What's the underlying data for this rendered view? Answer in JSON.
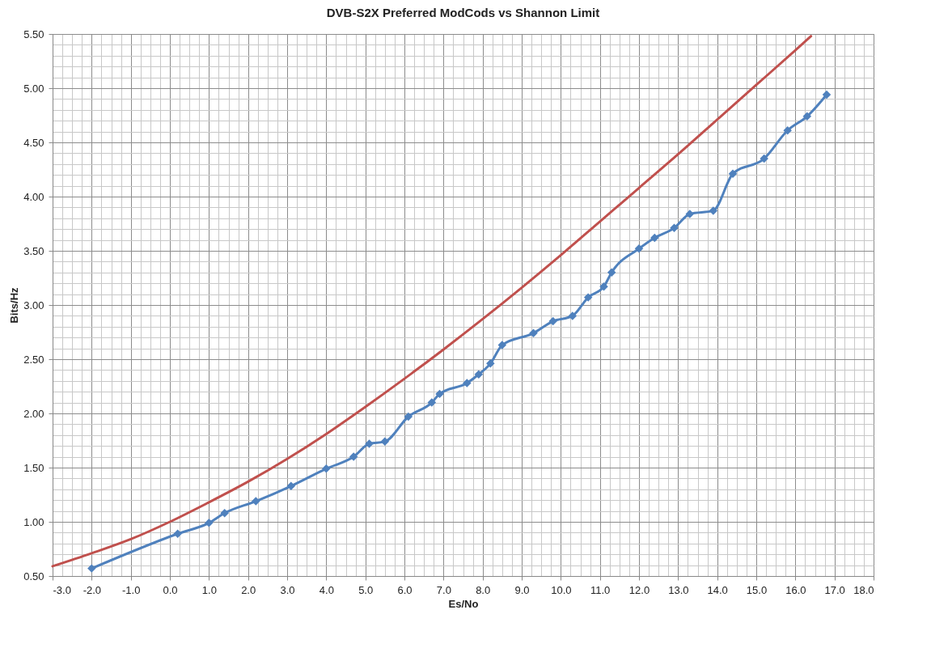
{
  "chart_data": {
    "type": "line",
    "title": "DVB-S2X Preferred ModCods vs Shannon Limit",
    "xlabel": "Es/No",
    "ylabel": "Bits/Hz",
    "xlim": [
      -3,
      18
    ],
    "ylim": [
      0.5,
      5.5
    ],
    "grid": true,
    "xticks": [
      {
        "value": -3,
        "label": "-3.0"
      },
      {
        "value": -2.75,
        "label": null
      },
      {
        "value": -2.5,
        "label": null
      },
      {
        "value": -2.25,
        "label": null
      },
      {
        "value": -2,
        "label": "-2.0"
      },
      {
        "value": -1.75,
        "label": null
      },
      {
        "value": -1.5,
        "label": null
      },
      {
        "value": -1.25,
        "label": null
      },
      {
        "value": -1,
        "label": "-1.0"
      },
      {
        "value": -0.75,
        "label": null
      },
      {
        "value": -0.5,
        "label": null
      },
      {
        "value": -0.25,
        "label": null
      },
      {
        "value": 0,
        "label": "0.0"
      },
      {
        "value": 0.25,
        "label": null
      },
      {
        "value": 0.5,
        "label": null
      },
      {
        "value": 0.75,
        "label": null
      },
      {
        "value": 1,
        "label": "1.0"
      },
      {
        "value": 1.25,
        "label": null
      },
      {
        "value": 1.5,
        "label": null
      },
      {
        "value": 1.75,
        "label": null
      },
      {
        "value": 2,
        "label": "2.0"
      },
      {
        "value": 2.25,
        "label": null
      },
      {
        "value": 2.5,
        "label": null
      },
      {
        "value": 2.75,
        "label": null
      },
      {
        "value": 3,
        "label": "3.0"
      },
      {
        "value": 3.25,
        "label": null
      },
      {
        "value": 3.5,
        "label": null
      },
      {
        "value": 3.75,
        "label": null
      },
      {
        "value": 4,
        "label": "4.0"
      },
      {
        "value": 4.25,
        "label": null
      },
      {
        "value": 4.5,
        "label": null
      },
      {
        "value": 4.75,
        "label": null
      },
      {
        "value": 5,
        "label": "5.0"
      },
      {
        "value": 5.25,
        "label": null
      },
      {
        "value": 5.5,
        "label": null
      },
      {
        "value": 5.75,
        "label": null
      },
      {
        "value": 6,
        "label": "6.0"
      },
      {
        "value": 6.25,
        "label": null
      },
      {
        "value": 6.5,
        "label": null
      },
      {
        "value": 6.75,
        "label": null
      },
      {
        "value": 7,
        "label": "7.0"
      },
      {
        "value": 7.25,
        "label": null
      },
      {
        "value": 7.5,
        "label": null
      },
      {
        "value": 7.75,
        "label": null
      },
      {
        "value": 8,
        "label": "8.0"
      },
      {
        "value": 8.25,
        "label": null
      },
      {
        "value": 8.5,
        "label": null
      },
      {
        "value": 8.75,
        "label": null
      },
      {
        "value": 9,
        "label": "9.0"
      },
      {
        "value": 9.25,
        "label": null
      },
      {
        "value": 9.5,
        "label": null
      },
      {
        "value": 9.75,
        "label": null
      },
      {
        "value": 10,
        "label": "10.0"
      },
      {
        "value": 10.25,
        "label": null
      },
      {
        "value": 10.5,
        "label": null
      },
      {
        "value": 10.75,
        "label": null
      },
      {
        "value": 11,
        "label": "11.0"
      },
      {
        "value": 11.25,
        "label": null
      },
      {
        "value": 11.5,
        "label": null
      },
      {
        "value": 11.75,
        "label": null
      },
      {
        "value": 12,
        "label": "12.0"
      },
      {
        "value": 12.25,
        "label": null
      },
      {
        "value": 12.5,
        "label": null
      },
      {
        "value": 12.75,
        "label": null
      },
      {
        "value": 13,
        "label": "13.0"
      },
      {
        "value": 13.25,
        "label": null
      },
      {
        "value": 13.5,
        "label": null
      },
      {
        "value": 13.75,
        "label": null
      },
      {
        "value": 14,
        "label": "14.0"
      },
      {
        "value": 14.25,
        "label": null
      },
      {
        "value": 14.5,
        "label": null
      },
      {
        "value": 14.75,
        "label": null
      },
      {
        "value": 15,
        "label": "15.0"
      },
      {
        "value": 15.25,
        "label": null
      },
      {
        "value": 15.5,
        "label": null
      },
      {
        "value": 15.75,
        "label": null
      },
      {
        "value": 16,
        "label": "16.0"
      },
      {
        "value": 16.25,
        "label": null
      },
      {
        "value": 16.5,
        "label": null
      },
      {
        "value": 16.75,
        "label": null
      },
      {
        "value": 17,
        "label": "17.0"
      },
      {
        "value": 17.25,
        "label": null
      },
      {
        "value": 17.5,
        "label": null
      },
      {
        "value": 17.75,
        "label": null
      },
      {
        "value": 18,
        "label": "18.0"
      }
    ],
    "yticks": [
      {
        "value": 0.5,
        "label": "0.50"
      },
      {
        "value": 0.6,
        "label": null
      },
      {
        "value": 0.7,
        "label": null
      },
      {
        "value": 0.8,
        "label": null
      },
      {
        "value": 0.9,
        "label": null
      },
      {
        "value": 1,
        "label": "1.00"
      },
      {
        "value": 1.1,
        "label": null
      },
      {
        "value": 1.2,
        "label": null
      },
      {
        "value": 1.3,
        "label": null
      },
      {
        "value": 1.4,
        "label": null
      },
      {
        "value": 1.5,
        "label": "1.50"
      },
      {
        "value": 1.6,
        "label": null
      },
      {
        "value": 1.7,
        "label": null
      },
      {
        "value": 1.8,
        "label": null
      },
      {
        "value": 1.9,
        "label": null
      },
      {
        "value": 2,
        "label": "2.00"
      },
      {
        "value": 2.1,
        "label": null
      },
      {
        "value": 2.2,
        "label": null
      },
      {
        "value": 2.3,
        "label": null
      },
      {
        "value": 2.4,
        "label": null
      },
      {
        "value": 2.5,
        "label": "2.50"
      },
      {
        "value": 2.6,
        "label": null
      },
      {
        "value": 2.7,
        "label": null
      },
      {
        "value": 2.8,
        "label": null
      },
      {
        "value": 2.9,
        "label": null
      },
      {
        "value": 3,
        "label": "3.00"
      },
      {
        "value": 3.1,
        "label": null
      },
      {
        "value": 3.2,
        "label": null
      },
      {
        "value": 3.3,
        "label": null
      },
      {
        "value": 3.4,
        "label": null
      },
      {
        "value": 3.5,
        "label": "3.50"
      },
      {
        "value": 3.6,
        "label": null
      },
      {
        "value": 3.7,
        "label": null
      },
      {
        "value": 3.8,
        "label": null
      },
      {
        "value": 3.9,
        "label": null
      },
      {
        "value": 4,
        "label": "4.00"
      },
      {
        "value": 4.1,
        "label": null
      },
      {
        "value": 4.2,
        "label": null
      },
      {
        "value": 4.3,
        "label": null
      },
      {
        "value": 4.4,
        "label": null
      },
      {
        "value": 4.5,
        "label": "4.50"
      },
      {
        "value": 4.6,
        "label": null
      },
      {
        "value": 4.7,
        "label": null
      },
      {
        "value": 4.8,
        "label": null
      },
      {
        "value": 4.9,
        "label": null
      },
      {
        "value": 5,
        "label": "5.00"
      },
      {
        "value": 5.1,
        "label": null
      },
      {
        "value": 5.2,
        "label": null
      },
      {
        "value": 5.3,
        "label": null
      },
      {
        "value": 5.4,
        "label": null
      },
      {
        "value": 5.5,
        "label": "5.50"
      }
    ],
    "series": [
      {
        "color": "#c0504d",
        "marker": "none",
        "x": [
          -3,
          -2,
          -1,
          0,
          1,
          2,
          3,
          4,
          5,
          6,
          7,
          8,
          9,
          10,
          11,
          12,
          13,
          14,
          15,
          16,
          16.4
        ],
        "values": [
          0.59,
          0.71,
          0.84,
          1.0,
          1.18,
          1.37,
          1.58,
          1.81,
          2.06,
          2.32,
          2.59,
          2.87,
          3.16,
          3.46,
          3.77,
          4.08,
          4.39,
          4.71,
          5.03,
          5.35,
          5.48
        ]
      },
      {
        "color": "#4f81bd",
        "marker": "diamond",
        "x": [
          -2.0,
          0.2,
          1.0,
          1.4,
          2.2,
          3.1,
          4.0,
          4.7,
          5.1,
          5.5,
          6.1,
          6.7,
          6.9,
          7.6,
          7.9,
          8.2,
          8.5,
          9.3,
          9.8,
          10.3,
          10.7,
          11.1,
          11.3,
          12.0,
          12.4,
          12.9,
          13.3,
          13.9,
          14.4,
          15.2,
          15.8,
          16.3,
          16.8
        ],
        "values": [
          0.57,
          0.89,
          0.99,
          1.08,
          1.19,
          1.33,
          1.49,
          1.6,
          1.72,
          1.74,
          1.97,
          2.1,
          2.18,
          2.28,
          2.36,
          2.46,
          2.63,
          2.74,
          2.85,
          2.9,
          3.07,
          3.17,
          3.3,
          3.52,
          3.62,
          3.71,
          3.84,
          3.87,
          4.21,
          4.35,
          4.61,
          4.74,
          4.94
        ]
      }
    ]
  }
}
